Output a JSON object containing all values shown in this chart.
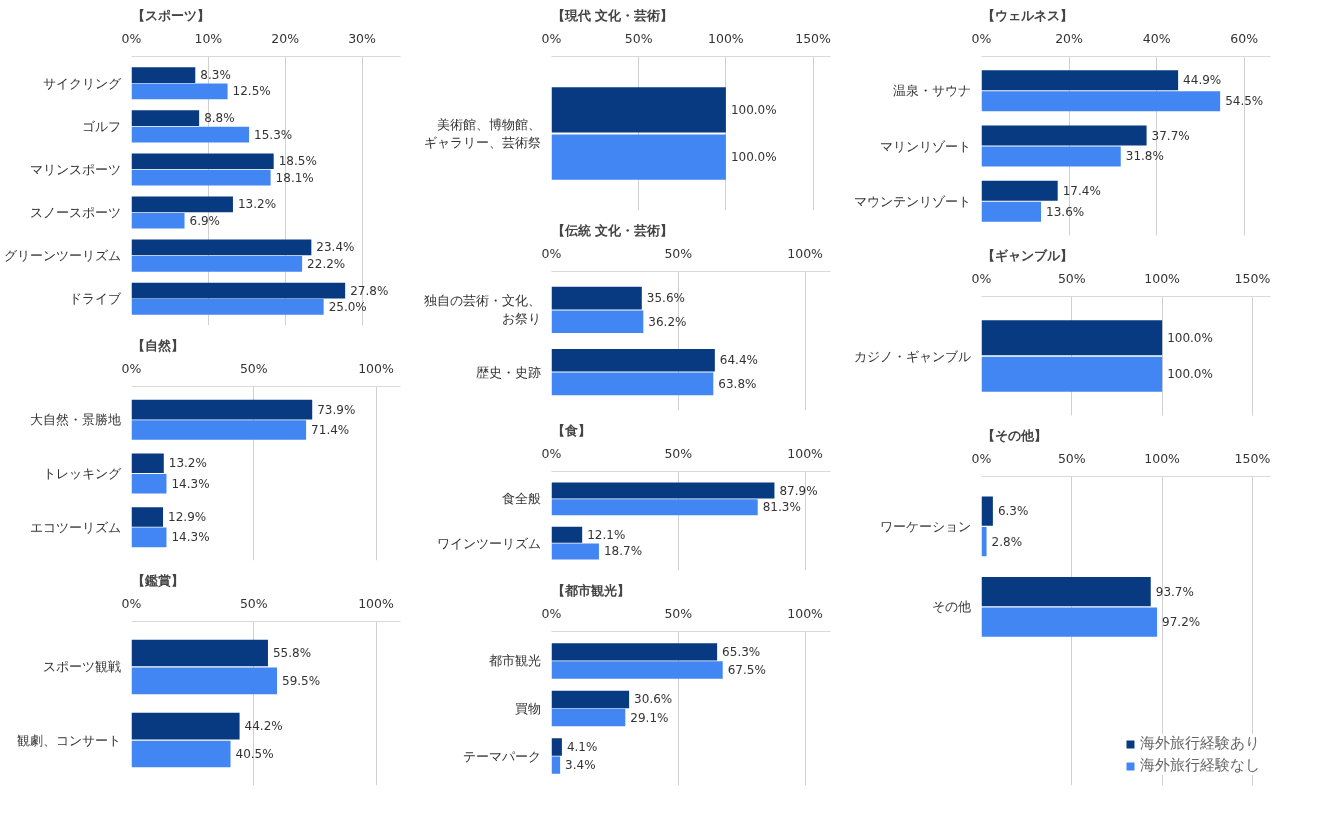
{
  "chart_data": [
    {
      "type": "bar",
      "orientation": "horizontal",
      "title": "【スポーツ】",
      "categories": [
        "サイクリング",
        "ゴルフ",
        "マリンスポーツ",
        "スノースポーツ",
        "グリーンツーリズム",
        "ドライブ"
      ],
      "xlim": [
        0,
        35
      ],
      "xticks": [
        {
          "value": 0,
          "label": "0%"
        },
        {
          "value": 10,
          "label": "10%"
        },
        {
          "value": 20,
          "label": "20%"
        },
        {
          "value": 30,
          "label": "30%"
        }
      ],
      "grid": "x",
      "legend": false,
      "series": [
        {
          "color": "#073a80",
          "values": [
            8.3,
            8.8,
            18.5,
            13.2,
            23.4,
            27.8
          ],
          "value_labels": [
            "8.3%",
            "8.8%",
            "18.5%",
            "13.2%",
            "23.4%",
            "27.8%"
          ]
        },
        {
          "color": "#4286f4",
          "values": [
            12.5,
            15.3,
            18.1,
            6.9,
            22.2,
            25.0
          ],
          "value_labels": [
            "12.5%",
            "15.3%",
            "18.1%",
            "6.9%",
            "22.2%",
            "25.0%"
          ]
        }
      ]
    },
    {
      "type": "bar",
      "orientation": "horizontal",
      "title": "【自然】",
      "categories": [
        "大自然・景勝地",
        "トレッキング",
        "エコツーリズム"
      ],
      "xlim": [
        0,
        110
      ],
      "xticks": [
        {
          "value": 0,
          "label": "0%"
        },
        {
          "value": 50,
          "label": "50%"
        },
        {
          "value": 100,
          "label": "100%"
        }
      ],
      "grid": "x",
      "legend": false,
      "series": [
        {
          "color": "#073a80",
          "values": [
            73.9,
            13.2,
            12.9
          ],
          "value_labels": [
            "73.9%",
            "13.2%",
            "12.9%"
          ]
        },
        {
          "color": "#4286f4",
          "values": [
            71.4,
            14.3,
            14.3
          ],
          "value_labels": [
            "71.4%",
            "14.3%",
            "14.3%"
          ]
        }
      ]
    },
    {
      "type": "bar",
      "orientation": "horizontal",
      "title": "【鑑賞】",
      "categories": [
        "スポーツ観戦",
        "観劇、コンサート"
      ],
      "xlim": [
        0,
        110
      ],
      "xticks": [
        {
          "value": 0,
          "label": "0%"
        },
        {
          "value": 50,
          "label": "50%"
        },
        {
          "value": 100,
          "label": "100%"
        }
      ],
      "grid": "x",
      "legend": false,
      "series": [
        {
          "color": "#073a80",
          "values": [
            55.8,
            44.2
          ],
          "value_labels": [
            "55.8%",
            "44.2%"
          ]
        },
        {
          "color": "#4286f4",
          "values": [
            59.5,
            40.5
          ],
          "value_labels": [
            "59.5%",
            "40.5%"
          ]
        }
      ]
    },
    {
      "type": "bar",
      "orientation": "horizontal",
      "title": "【現代 文化・芸術】",
      "categories": [
        "美術館、博物館、ギャラリー、芸術祭"
      ],
      "xlim": [
        0,
        160
      ],
      "xticks": [
        {
          "value": 0,
          "label": "0%"
        },
        {
          "value": 50,
          "label": "50%"
        },
        {
          "value": 100,
          "label": "100%"
        },
        {
          "value": 150,
          "label": "150%"
        }
      ],
      "grid": "x",
      "legend": false,
      "series": [
        {
          "color": "#073a80",
          "values": [
            100.0
          ],
          "value_labels": [
            "100.0%"
          ]
        },
        {
          "color": "#4286f4",
          "values": [
            100.0
          ],
          "value_labels": [
            "100.0%"
          ]
        }
      ]
    },
    {
      "type": "bar",
      "orientation": "horizontal",
      "title": "【伝統 文化・芸術】",
      "categories": [
        "独自の芸術・文化、お祭り",
        "歴史・史跡"
      ],
      "xlim": [
        0,
        110
      ],
      "xticks": [
        {
          "value": 0,
          "label": "0%"
        },
        {
          "value": 50,
          "label": "50%"
        },
        {
          "value": 100,
          "label": "100%"
        }
      ],
      "grid": "x",
      "legend": false,
      "series": [
        {
          "color": "#073a80",
          "values": [
            35.6,
            64.4
          ],
          "value_labels": [
            "35.6%",
            "64.4%"
          ]
        },
        {
          "color": "#4286f4",
          "values": [
            36.2,
            63.8
          ],
          "value_labels": [
            "36.2%",
            "63.8%"
          ]
        }
      ]
    },
    {
      "type": "bar",
      "orientation": "horizontal",
      "title": "【食】",
      "categories": [
        "食全般",
        "ワインツーリズム"
      ],
      "xlim": [
        0,
        110
      ],
      "xticks": [
        {
          "value": 0,
          "label": "0%"
        },
        {
          "value": 50,
          "label": "50%"
        },
        {
          "value": 100,
          "label": "100%"
        }
      ],
      "grid": "x",
      "legend": false,
      "series": [
        {
          "color": "#073a80",
          "values": [
            87.9,
            12.1
          ],
          "value_labels": [
            "87.9%",
            "12.1%"
          ]
        },
        {
          "color": "#4286f4",
          "values": [
            81.3,
            18.7
          ],
          "value_labels": [
            "81.3%",
            "18.7%"
          ]
        }
      ]
    },
    {
      "type": "bar",
      "orientation": "horizontal",
      "title": "【都市観光】",
      "categories": [
        "都市観光",
        "買物",
        "テーマパーク"
      ],
      "xlim": [
        0,
        110
      ],
      "xticks": [
        {
          "value": 0,
          "label": "0%"
        },
        {
          "value": 50,
          "label": "50%"
        },
        {
          "value": 100,
          "label": "100%"
        }
      ],
      "grid": "x",
      "legend": false,
      "series": [
        {
          "color": "#073a80",
          "values": [
            65.3,
            30.6,
            4.1
          ],
          "value_labels": [
            "65.3%",
            "30.6%",
            "4.1%"
          ]
        },
        {
          "color": "#4286f4",
          "values": [
            67.5,
            29.1,
            3.4
          ],
          "value_labels": [
            "67.5%",
            "29.1%",
            "3.4%"
          ]
        }
      ]
    },
    {
      "type": "bar",
      "orientation": "horizontal",
      "title": "【ウェルネス】",
      "categories": [
        "温泉・サウナ",
        "マリンリゾート",
        "マウンテンリゾート"
      ],
      "xlim": [
        0,
        66
      ],
      "xticks": [
        {
          "value": 0,
          "label": "0%"
        },
        {
          "value": 20,
          "label": "20%"
        },
        {
          "value": 40,
          "label": "40%"
        },
        {
          "value": 60,
          "label": "60%"
        }
      ],
      "grid": "x",
      "legend": false,
      "series": [
        {
          "color": "#073a80",
          "values": [
            44.9,
            37.7,
            17.4
          ],
          "value_labels": [
            "44.9%",
            "37.7%",
            "17.4%"
          ]
        },
        {
          "color": "#4286f4",
          "values": [
            54.5,
            31.8,
            13.6
          ],
          "value_labels": [
            "54.5%",
            "31.8%",
            "13.6%"
          ]
        }
      ]
    },
    {
      "type": "bar",
      "orientation": "horizontal",
      "title": "【ギャンブル】",
      "categories": [
        "カジノ・ギャンブル"
      ],
      "xlim": [
        0,
        160
      ],
      "xticks": [
        {
          "value": 0,
          "label": "0%"
        },
        {
          "value": 50,
          "label": "50%"
        },
        {
          "value": 100,
          "label": "100%"
        },
        {
          "value": 150,
          "label": "150%"
        }
      ],
      "grid": "x",
      "legend": false,
      "series": [
        {
          "color": "#073a80",
          "values": [
            100.0
          ],
          "value_labels": [
            "100.0%"
          ]
        },
        {
          "color": "#4286f4",
          "values": [
            100.0
          ],
          "value_labels": [
            "100.0%"
          ]
        }
      ]
    },
    {
      "type": "bar",
      "orientation": "horizontal",
      "title": "【その他】",
      "categories": [
        "ワーケーション",
        "その他"
      ],
      "xlim": [
        0,
        160
      ],
      "xticks": [
        {
          "value": 0,
          "label": "0%"
        },
        {
          "value": 50,
          "label": "50%"
        },
        {
          "value": 100,
          "label": "100%"
        },
        {
          "value": 150,
          "label": "150%"
        }
      ],
      "grid": "x",
      "legend": "bottom right",
      "series": [
        {
          "name": "海外旅行経験あり",
          "color": "#073a80",
          "values": [
            6.3,
            93.7
          ],
          "value_labels": [
            "6.3%",
            "93.7%"
          ]
        },
        {
          "name": "海外旅行経験なし",
          "color": "#4286f4",
          "values": [
            2.8,
            97.2
          ],
          "value_labels": [
            "2.8%",
            "97.2%"
          ]
        }
      ]
    }
  ]
}
